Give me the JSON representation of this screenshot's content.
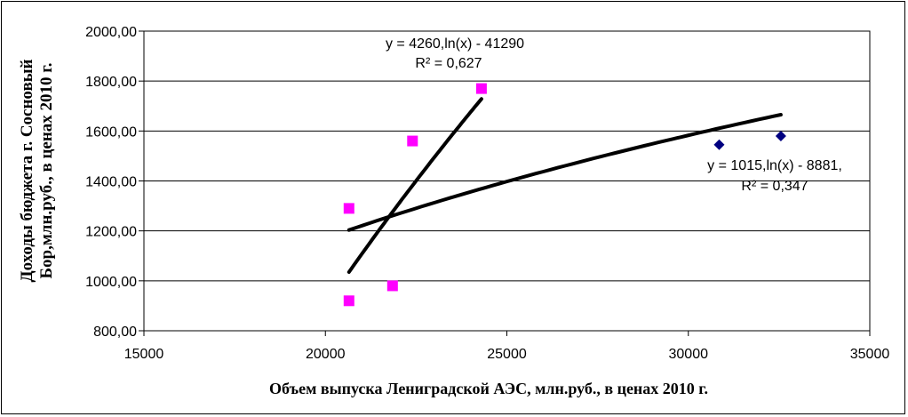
{
  "chart_data": {
    "type": "scatter",
    "xlabel": "Объем выпуска Лениградской АЭС, млн.руб., в ценах 2010 г.",
    "ylabel_line1": "Доходы бюджета г. Сосновый",
    "ylabel_line2": "Бор,млн.руб., в ценах 2010 г.",
    "xlim": [
      15000,
      35000
    ],
    "ylim": [
      800,
      2000
    ],
    "x_ticks": [
      15000,
      20000,
      25000,
      30000,
      35000
    ],
    "y_ticks": [
      800,
      1000,
      1200,
      1400,
      1600,
      1800,
      2000
    ],
    "x_tick_labels": [
      "15000",
      "20000",
      "25000",
      "30000",
      "35000"
    ],
    "y_tick_labels": [
      "800,00",
      "1000,00",
      "1200,00",
      "1400,00",
      "1600,00",
      "1800,00",
      "2000,00"
    ],
    "grid": "horizontal",
    "series": [
      {
        "marker": "diamond",
        "color": "#000080",
        "points": [
          [
            30850,
            1545
          ],
          [
            32550,
            1580
          ]
        ],
        "trend": {
          "type": "log",
          "a": 1015,
          "b": -8881,
          "x_range": [
            20650,
            32550
          ]
        }
      },
      {
        "marker": "square",
        "color": "#ff00ff",
        "points": [
          [
            20650,
            1290
          ],
          [
            20650,
            920
          ],
          [
            21850,
            980
          ],
          [
            22400,
            1560
          ],
          [
            24300,
            1770
          ]
        ],
        "trend": {
          "type": "log",
          "a": 4260,
          "b": -41290,
          "x_range": [
            20650,
            24300
          ]
        }
      }
    ],
    "annotations": [
      {
        "line1": "y = 4260,ln(x) - 41290",
        "line2": "R² = 0,627"
      },
      {
        "line1": "y = 1015,ln(x) - 8881,",
        "line2": "R² = 0,347"
      }
    ]
  }
}
